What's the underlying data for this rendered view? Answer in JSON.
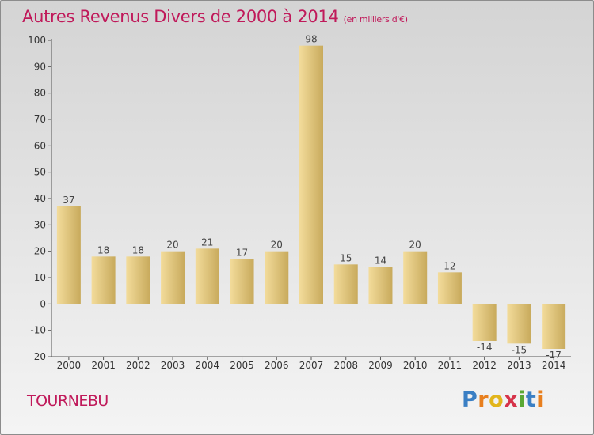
{
  "header": {
    "title": "Autres Revenus Divers de 2000 à 2014",
    "unit": "(en milliers d'€)"
  },
  "commune": "TOURNEBU",
  "logo": {
    "text": "Proxiti",
    "letters": [
      {
        "ch": "P",
        "color": "#3a7fc4"
      },
      {
        "ch": "r",
        "color": "#e87f1e"
      },
      {
        "ch": "o",
        "color": "#e2b51b"
      },
      {
        "ch": "x",
        "color": "#d6334a"
      },
      {
        "ch": "i",
        "color": "#5aa834"
      },
      {
        "ch": "t",
        "color": "#3a7fc4"
      },
      {
        "ch": "i",
        "color": "#e87f1e"
      }
    ]
  },
  "colors": {
    "title": "#c0195a",
    "bar_light": "#f3dc9b",
    "bar_dark": "#c8aa5c"
  },
  "chart_data": {
    "type": "bar",
    "title": "Autres Revenus Divers de 2000 à 2014",
    "subtitle": "(en milliers d'€)",
    "categories": [
      "2000",
      "2001",
      "2002",
      "2003",
      "2004",
      "2005",
      "2006",
      "2007",
      "2008",
      "2009",
      "2010",
      "2011",
      "2012",
      "2013",
      "2014"
    ],
    "values": [
      37,
      18,
      18,
      20,
      21,
      17,
      20,
      98,
      15,
      14,
      20,
      12,
      -14,
      -15,
      -17
    ],
    "labels": [
      "37",
      "18",
      "18",
      "20",
      "21",
      "17",
      "20",
      "98",
      "15",
      "14",
      "20",
      "12",
      "-14",
      "-15",
      "-17"
    ],
    "ylim": [
      -20,
      100
    ],
    "yticks": [
      -20,
      -10,
      0,
      10,
      20,
      30,
      40,
      50,
      60,
      70,
      80,
      90,
      100
    ],
    "grid": false,
    "legend": "none"
  }
}
